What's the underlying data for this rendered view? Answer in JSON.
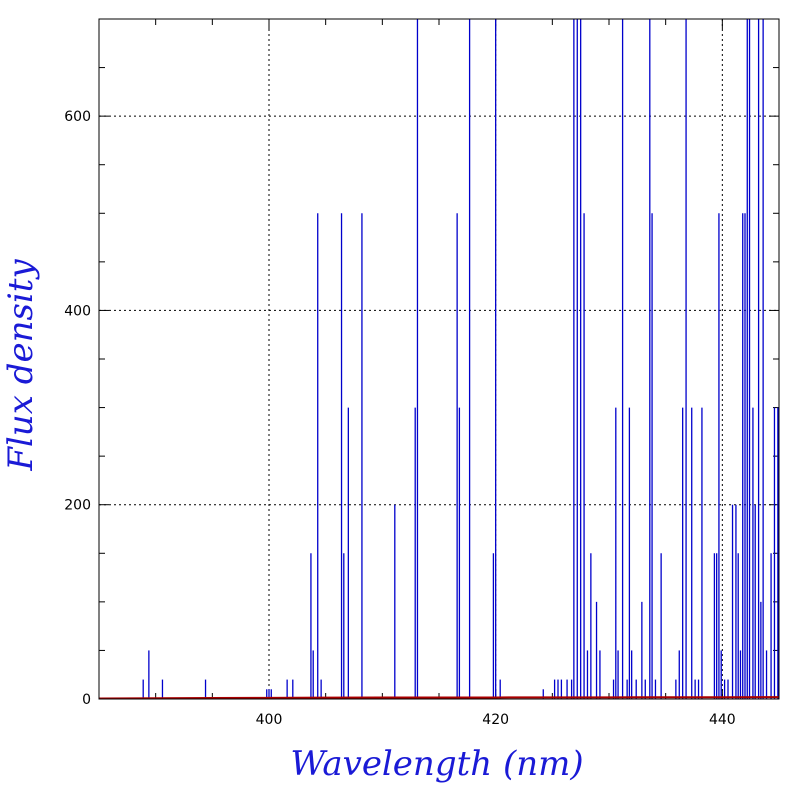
{
  "chart_data": {
    "type": "line",
    "xlabel": "Wavelength (nm)",
    "ylabel": "Flux density",
    "xlim": [
      385,
      445
    ],
    "ylim": [
      0,
      700
    ],
    "x_ticks": [
      400,
      420,
      440
    ],
    "y_ticks": [
      0,
      200,
      400,
      600
    ],
    "x_minor_step": 5,
    "y_minor_step": 50,
    "grid": true,
    "grid_style": "dotted",
    "label_color": "#1a1ad6",
    "series": [
      {
        "style": "sticks",
        "color": "#0000cc",
        "x": [
          388.9,
          389.4,
          390.6,
          394.4,
          399.8,
          400.0,
          400.2,
          401.6,
          402.1,
          403.7,
          403.9,
          404.3,
          404.6,
          406.4,
          406.6,
          407.0,
          408.2,
          411.1,
          412.9,
          413.1,
          416.6,
          416.8,
          417.7,
          419.8,
          420.0,
          420.4,
          424.2,
          425.2,
          425.5,
          425.8,
          426.3,
          426.7,
          426.9,
          427.2,
          427.5,
          427.8,
          428.1,
          428.4,
          428.9,
          429.2,
          430.4,
          430.6,
          430.8,
          431.2,
          431.6,
          431.8,
          432.0,
          432.4,
          432.9,
          433.2,
          433.6,
          433.8,
          434.1,
          434.6,
          435.9,
          436.2,
          436.5,
          436.8,
          437.3,
          437.6,
          437.9,
          438.2,
          439.3,
          439.5,
          439.7,
          439.9,
          440.2,
          440.5,
          440.9,
          441.2,
          441.4,
          441.6,
          441.8,
          442.0,
          442.2,
          442.4,
          442.7,
          442.9,
          443.2,
          443.4,
          443.6,
          443.9,
          444.3,
          444.6,
          444.9
        ],
        "values": [
          20,
          50,
          20,
          20,
          10,
          10,
          10,
          20,
          20,
          150,
          50,
          500,
          20,
          500,
          150,
          300,
          500,
          200,
          300,
          700,
          500,
          300,
          700,
          150,
          700,
          20,
          10,
          20,
          20,
          20,
          20,
          20,
          700,
          700,
          700,
          500,
          50,
          150,
          100,
          50,
          20,
          300,
          50,
          700,
          20,
          300,
          50,
          20,
          100,
          20,
          700,
          500,
          20,
          150,
          20,
          50,
          300,
          700,
          300,
          20,
          20,
          300,
          150,
          150,
          500,
          50,
          20,
          20,
          200,
          200,
          150,
          50,
          500,
          500,
          700,
          700,
          300,
          200,
          700,
          100,
          700,
          50,
          150,
          300,
          300
        ]
      },
      {
        "style": "baseline",
        "color": "#aa0000",
        "x": [
          385,
          390,
          395,
          400,
          405,
          410,
          415,
          420,
          425,
          430,
          435,
          440,
          445
        ],
        "values": [
          0.5,
          0.8,
          1.0,
          1.2,
          1.4,
          1.5,
          1.6,
          1.6,
          1.7,
          1.7,
          1.8,
          1.8,
          1.9
        ]
      }
    ]
  }
}
